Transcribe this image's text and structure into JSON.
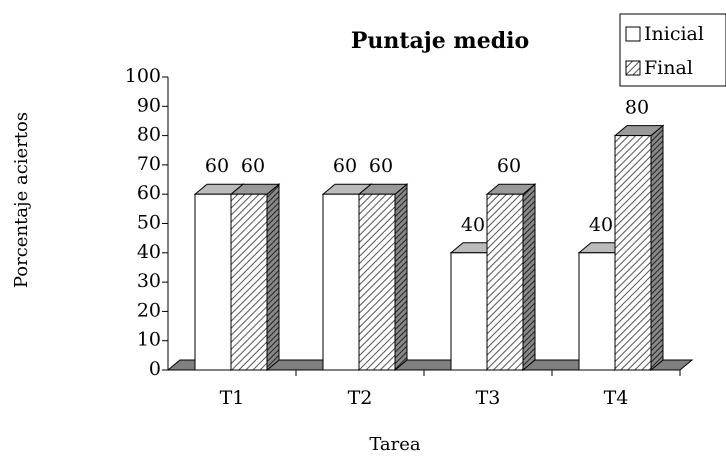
{
  "chart_data": {
    "type": "bar3d",
    "title": "Puntaje medio",
    "x_label": "Tarea",
    "y_label": "Porcentaje aciertos",
    "categories": [
      "T1",
      "T2",
      "T3",
      "T4"
    ],
    "series": [
      {
        "name": "Inicial",
        "color": "#ffffff",
        "values": [
          60,
          60,
          40,
          40
        ]
      },
      {
        "name": "Final",
        "color": "hatched",
        "values": [
          60,
          60,
          60,
          80
        ]
      }
    ],
    "ylim": [
      0,
      100
    ],
    "yticks": [
      0,
      10,
      20,
      30,
      40,
      50,
      60,
      70,
      80,
      90,
      100
    ],
    "legend": "top-right"
  }
}
